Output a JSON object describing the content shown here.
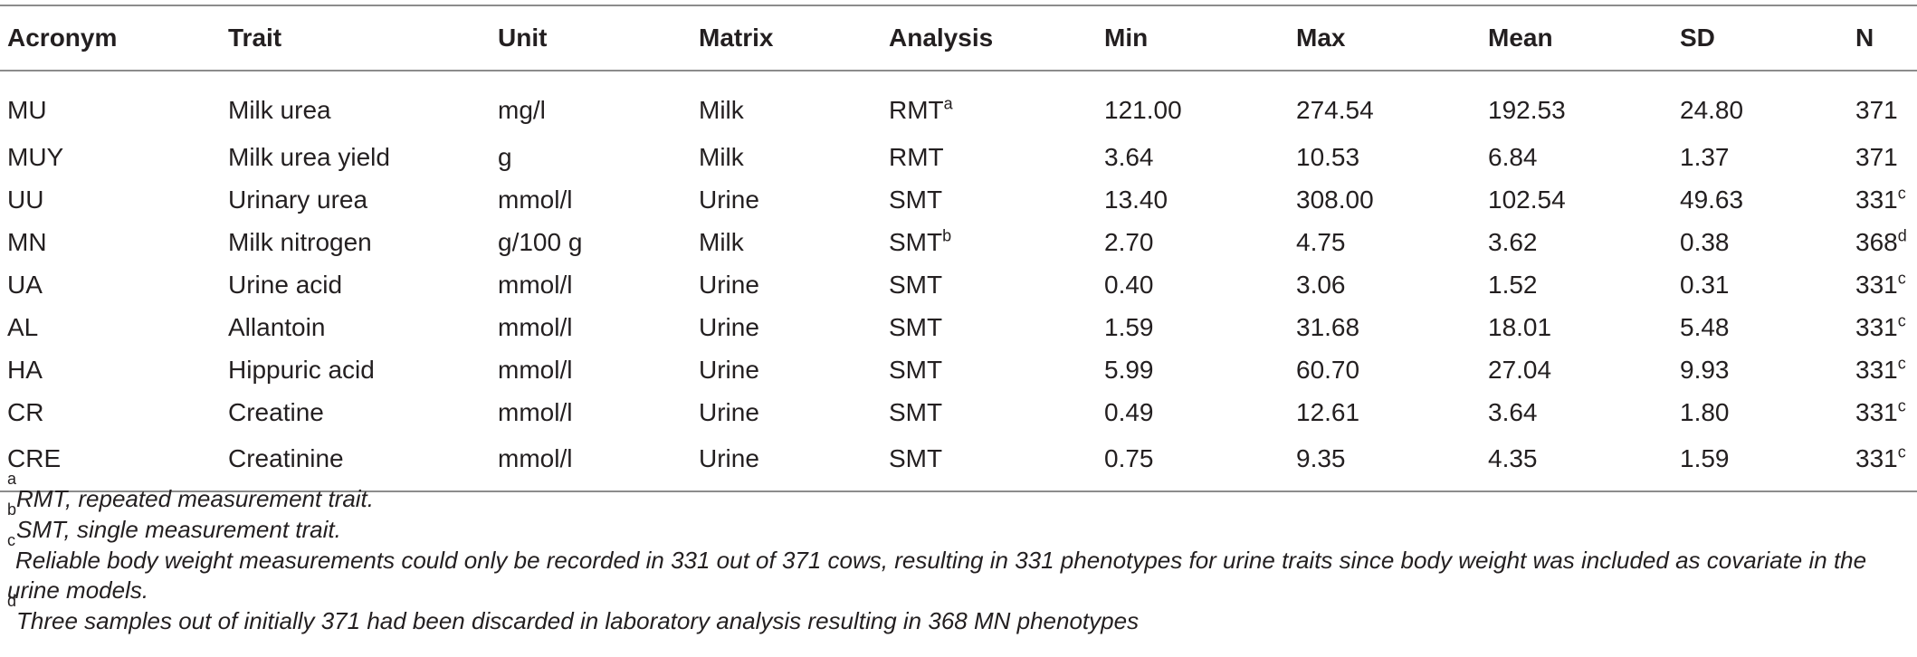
{
  "table": {
    "headers": [
      "Acronym",
      "Trait",
      "Unit",
      "Matrix",
      "Analysis",
      "Min",
      "Max",
      "Mean",
      "SD",
      "N"
    ],
    "rows": [
      {
        "acronym": "MU",
        "trait": "Milk urea",
        "unit": "mg/l",
        "matrix": "Milk",
        "analysis": "RMT",
        "analysis_sup": "a",
        "min": "121.00",
        "max": "274.54",
        "mean": "192.53",
        "sd": "24.80",
        "n": "371",
        "n_sup": ""
      },
      {
        "acronym": "MUY",
        "trait": "Milk urea yield",
        "unit": "g",
        "matrix": "Milk",
        "analysis": "RMT",
        "analysis_sup": "",
        "min": "3.64",
        "max": "10.53",
        "mean": "6.84",
        "sd": "1.37",
        "n": "371",
        "n_sup": ""
      },
      {
        "acronym": "UU",
        "trait": "Urinary urea",
        "unit": "mmol/l",
        "matrix": "Urine",
        "analysis": "SMT",
        "analysis_sup": "",
        "min": "13.40",
        "max": "308.00",
        "mean": "102.54",
        "sd": "49.63",
        "n": "331",
        "n_sup": "c"
      },
      {
        "acronym": "MN",
        "trait": "Milk nitrogen",
        "unit": "g/100 g",
        "matrix": "Milk",
        "analysis": "SMT",
        "analysis_sup": "b",
        "min": "2.70",
        "max": "4.75",
        "mean": "3.62",
        "sd": "0.38",
        "n": "368",
        "n_sup": "d"
      },
      {
        "acronym": "UA",
        "trait": "Urine acid",
        "unit": "mmol/l",
        "matrix": "Urine",
        "analysis": "SMT",
        "analysis_sup": "",
        "min": "0.40",
        "max": "3.06",
        "mean": "1.52",
        "sd": "0.31",
        "n": "331",
        "n_sup": "c"
      },
      {
        "acronym": "AL",
        "trait": "Allantoin",
        "unit": "mmol/l",
        "matrix": "Urine",
        "analysis": "SMT",
        "analysis_sup": "",
        "min": "1.59",
        "max": "31.68",
        "mean": "18.01",
        "sd": "5.48",
        "n": "331",
        "n_sup": "c"
      },
      {
        "acronym": "HA",
        "trait": "Hippuric acid",
        "unit": "mmol/l",
        "matrix": "Urine",
        "analysis": "SMT",
        "analysis_sup": "",
        "min": "5.99",
        "max": "60.70",
        "mean": "27.04",
        "sd": "9.93",
        "n": "331",
        "n_sup": "c"
      },
      {
        "acronym": "CR",
        "trait": "Creatine",
        "unit": "mmol/l",
        "matrix": "Urine",
        "analysis": "SMT",
        "analysis_sup": "",
        "min": "0.49",
        "max": "12.61",
        "mean": "3.64",
        "sd": "1.80",
        "n": "331",
        "n_sup": "c"
      },
      {
        "acronym": "CRE",
        "trait": "Creatinine",
        "unit": "mmol/l",
        "matrix": "Urine",
        "analysis": "SMT",
        "analysis_sup": "",
        "min": "0.75",
        "max": "9.35",
        "mean": "4.35",
        "sd": "1.59",
        "n": "331",
        "n_sup": "c"
      }
    ]
  },
  "footnotes": [
    {
      "mark": "a",
      "text": "RMT, repeated measurement trait."
    },
    {
      "mark": "b",
      "text": "SMT, single measurement trait."
    },
    {
      "mark": "c",
      "text": "Reliable body weight measurements could only be recorded in 331 out of 371 cows, resulting in 331 phenotypes for urine traits since body weight was included as covariate in the urine models."
    },
    {
      "mark": "d",
      "text": "Three samples out of initially 371 had been discarded in laboratory analysis resulting in 368 MN phenotypes"
    }
  ]
}
